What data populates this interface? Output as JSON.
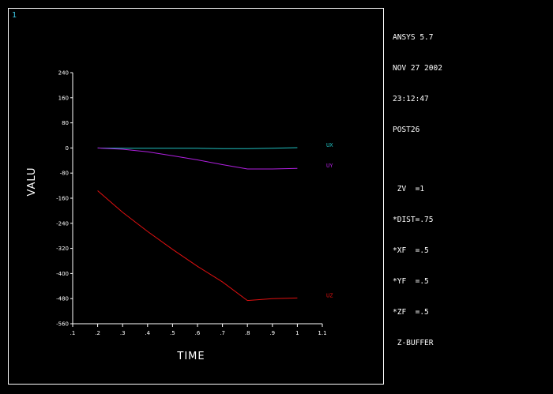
{
  "window": {
    "number": "1"
  },
  "info_panel": {
    "lines_top": [
      "ANSYS 5.7",
      "NOV 27 2002",
      "23:12:47",
      "POST26"
    ],
    "lines_bottom": [
      " ZV  =1",
      "*DIST=.75",
      "*XF  =.5",
      "*YF  =.5",
      "*ZF  =.5",
      " Z-BUFFER"
    ]
  },
  "colors": {
    "axis": "#ffffff",
    "ux": "#20c0c0",
    "uy": "#b020e0",
    "uz": "#e01010"
  },
  "chart_data": {
    "type": "line",
    "xlabel": "TIME",
    "ylabel": "VALU",
    "xlim": [
      0.1,
      1.1
    ],
    "ylim": [
      -560,
      240
    ],
    "x_ticks": [
      ".1",
      ".2",
      ".3",
      ".4",
      ".5",
      ".6",
      ".7",
      ".8",
      ".9",
      "1",
      "1.1"
    ],
    "y_ticks": [
      "240",
      "160",
      "80",
      "0",
      "-80",
      "-160",
      "-240",
      "-320",
      "-400",
      "-480",
      "-560"
    ],
    "series": [
      {
        "name": "ux",
        "color": "#20c0c0",
        "x": [
          0.2,
          0.3,
          0.4,
          0.5,
          0.6,
          0.7,
          0.8,
          0.9,
          1.0
        ],
        "y": [
          0,
          -1,
          -1,
          -1,
          -1,
          -2,
          -2,
          -1,
          1
        ]
      },
      {
        "name": "uy",
        "color": "#b020e0",
        "x": [
          0.2,
          0.3,
          0.4,
          0.5,
          0.6,
          0.7,
          0.8,
          0.9,
          1.0
        ],
        "y": [
          0,
          -4,
          -12,
          -25,
          -38,
          -53,
          -67,
          -67,
          -65
        ]
      },
      {
        "name": "uz",
        "color": "#e01010",
        "x": [
          0.2,
          0.3,
          0.4,
          0.5,
          0.6,
          0.7,
          0.8,
          0.9,
          1.0
        ],
        "y": [
          -136,
          -205,
          -266,
          -323,
          -377,
          -427,
          -486,
          -480,
          -478
        ]
      }
    ]
  }
}
